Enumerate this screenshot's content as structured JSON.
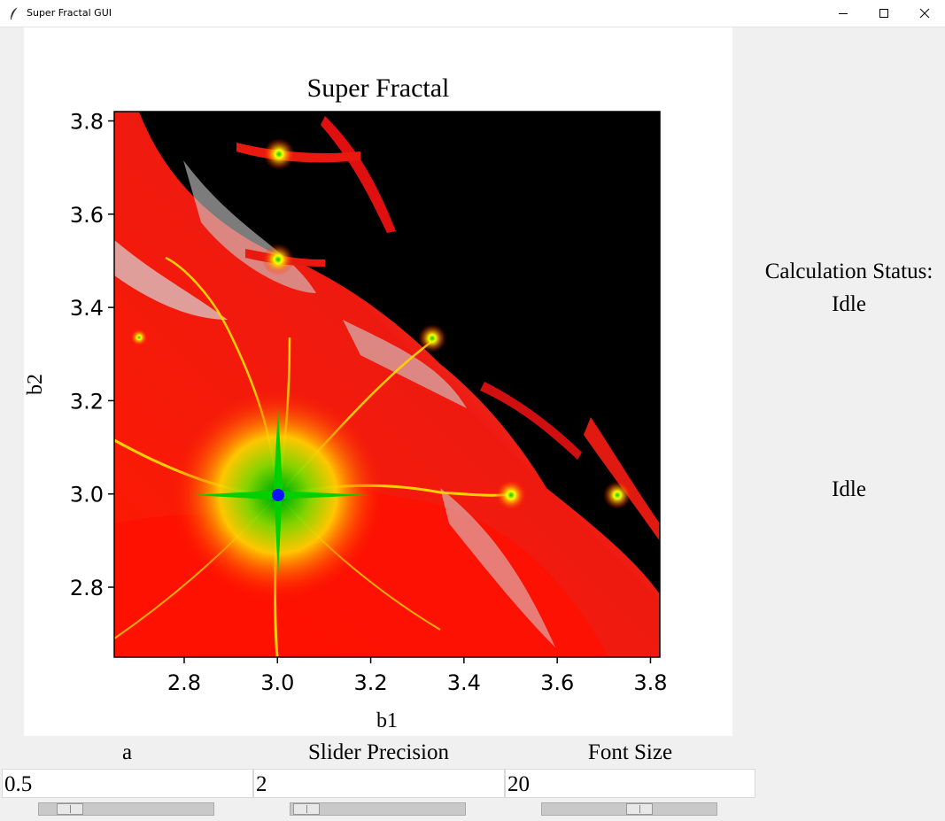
{
  "window": {
    "title": "Super Fractal GUI",
    "icon": "feather-icon",
    "controls": [
      "minimize-icon",
      "maximize-icon",
      "close-icon"
    ]
  },
  "plot": {
    "title": "Super Fractal",
    "xlabel": "b1",
    "ylabel": "b2",
    "x_ticks": [
      "2.8",
      "3.0",
      "3.2",
      "3.4",
      "3.6",
      "3.8"
    ],
    "y_ticks": [
      "2.8",
      "3.0",
      "3.2",
      "3.4",
      "3.6",
      "3.8"
    ],
    "xlim": [
      2.65,
      3.82
    ],
    "ylim": [
      2.65,
      3.82
    ],
    "colormap": [
      "#000000",
      "#ff0000",
      "#c8c8c8",
      "#ffff00",
      "#00c800",
      "#0000ff"
    ]
  },
  "status": {
    "title": "Calculation Status:",
    "value1": "Idle",
    "value2": "Idle"
  },
  "controls": [
    {
      "label": "a",
      "value": "0.5",
      "slider_fraction": 0.12
    },
    {
      "label": "Slider Precision",
      "value": "2",
      "slider_fraction": 0.02
    },
    {
      "label": "Font Size",
      "value": "20",
      "slider_fraction": 0.57
    }
  ]
}
